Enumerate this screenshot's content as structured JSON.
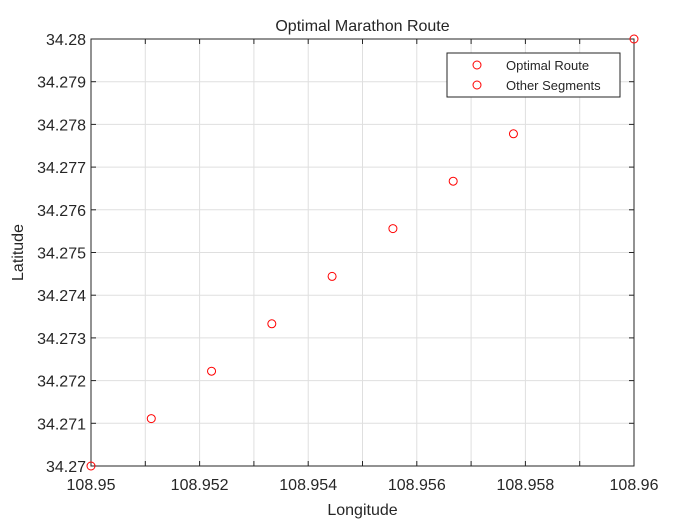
{
  "chart_data": {
    "type": "scatter",
    "title": "Optimal Marathon Route",
    "xlabel": "Longitude",
    "ylabel": "Latitude",
    "xlim": [
      108.95,
      108.96
    ],
    "ylim": [
      34.27,
      34.28
    ],
    "xticks": [
      108.95,
      108.951,
      108.952,
      108.953,
      108.954,
      108.955,
      108.956,
      108.957,
      108.958,
      108.959,
      108.96
    ],
    "xtick_labels": [
      "108.95",
      "",
      "108.952",
      "",
      "108.954",
      "",
      "108.956",
      "",
      "108.958",
      "",
      "108.96"
    ],
    "yticks": [
      34.27,
      34.271,
      34.272,
      34.273,
      34.274,
      34.275,
      34.276,
      34.277,
      34.278,
      34.279,
      34.28
    ],
    "ytick_labels": [
      "34.27",
      "34.271",
      "34.272",
      "34.273",
      "34.274",
      "34.275",
      "34.276",
      "34.277",
      "34.278",
      "34.279",
      "34.28"
    ],
    "grid": true,
    "legend_position": "top-right",
    "series": [
      {
        "name": "Optimal Route",
        "color": "#ff0000",
        "marker": "circle",
        "x": [
          108.95,
          108.95111,
          108.95222,
          108.95333,
          108.95444,
          108.95556,
          108.95667,
          108.95778,
          108.96
        ],
        "y": [
          34.27,
          34.27111,
          34.27222,
          34.27333,
          34.27444,
          34.27556,
          34.27667,
          34.27778,
          34.28
        ]
      },
      {
        "name": "Other Segments",
        "color": "#ff0000",
        "marker": "circle",
        "x": [],
        "y": []
      }
    ]
  }
}
